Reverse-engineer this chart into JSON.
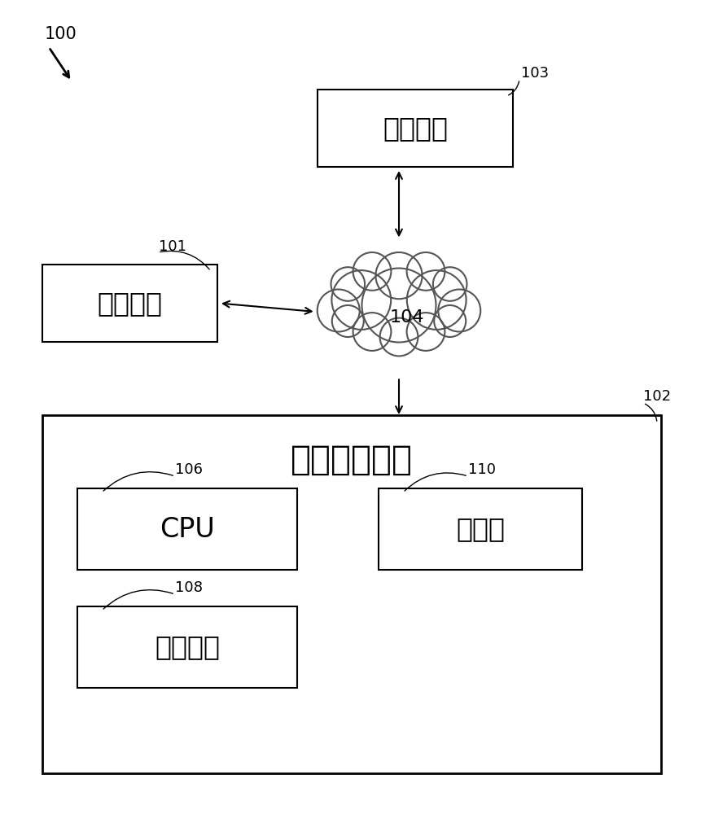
{
  "bg_color": "#ffffff",
  "label_100": "100",
  "label_101": "101",
  "label_102": "102",
  "label_103": "103",
  "label_104": "104",
  "label_106": "106",
  "label_108": "108",
  "label_110": "110",
  "text_jisuan": "计算设备",
  "text_chengxiang": "成像设备",
  "text_huodong": "活动识别系统",
  "text_cpu": "CPU",
  "text_caozuo": "操作面板",
  "text_cunchu": "存储器",
  "box_color": "#000000",
  "text_color": "#000000",
  "arrow_color": "#000000"
}
